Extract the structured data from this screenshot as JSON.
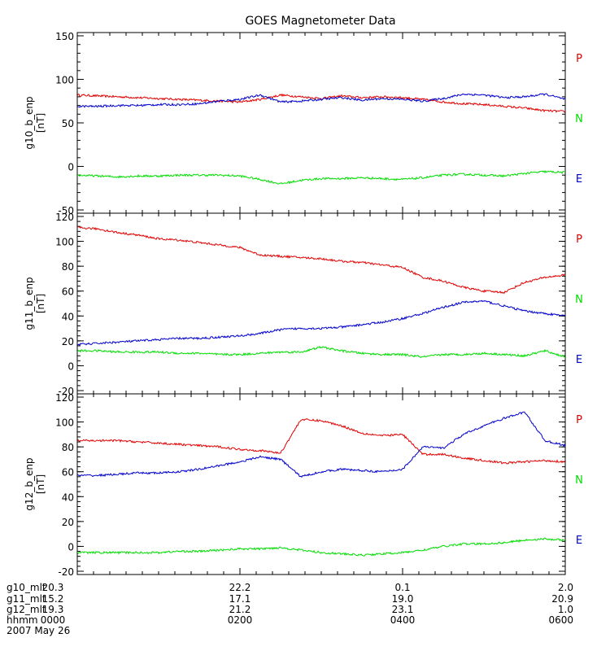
{
  "chart_data": {
    "type": "line",
    "title": "GOES Magnetometer Data",
    "colors": {
      "P": "#e00000",
      "N": "#00dd00",
      "E": "#0000cc"
    },
    "x": [
      0,
      15,
      30,
      45,
      60,
      75,
      90,
      105,
      120,
      135,
      150,
      165,
      180,
      195,
      210,
      225,
      240,
      255,
      270,
      285,
      300,
      315,
      330,
      345,
      360
    ],
    "xlim": [
      0,
      360
    ],
    "panels": [
      {
        "ylabel": "g10_b_enp",
        "units": "[nT]",
        "ylim": [
          -50,
          150
        ],
        "yticks": [
          -50,
          0,
          50,
          100,
          150
        ],
        "legend": [
          "P",
          "N",
          "E"
        ],
        "series": [
          {
            "name": "P",
            "color": "#e00000",
            "values": [
              82,
              81,
              80,
              79,
              78,
              77,
              76,
              75,
              74,
              77,
              82,
              80,
              78,
              81,
              79,
              80,
              79,
              77,
              74,
              72,
              71,
              69,
              67,
              64,
              63
            ]
          },
          {
            "name": "N",
            "color": "#00dd00",
            "values": [
              -10,
              -11,
              -12,
              -11,
              -11,
              -10,
              -10,
              -10,
              -11,
              -15,
              -20,
              -16,
              -14,
              -14,
              -13,
              -14,
              -15,
              -13,
              -10,
              -9,
              -10,
              -11,
              -8,
              -6,
              -7
            ]
          },
          {
            "name": "E",
            "color": "#0000cc",
            "values": [
              69,
              69,
              70,
              70,
              71,
              71,
              72,
              75,
              77,
              82,
              74,
              75,
              77,
              79,
              76,
              78,
              77,
              75,
              78,
              83,
              82,
              79,
              80,
              83,
              77
            ]
          }
        ]
      },
      {
        "ylabel": "g11_b_enp",
        "units": "[nT]",
        "ylim": [
          -20,
          120
        ],
        "yticks": [
          -20,
          0,
          20,
          40,
          60,
          80,
          100,
          120
        ],
        "legend": [
          "P",
          "N",
          "E"
        ],
        "series": [
          {
            "name": "P",
            "color": "#e00000",
            "values": [
              111,
              110,
              107,
              105,
              102,
              101,
              99,
              97,
              95,
              89,
              88,
              87,
              86,
              84,
              83,
              81,
              79,
              71,
              68,
              63,
              60,
              59,
              67,
              71,
              73
            ]
          },
          {
            "name": "N",
            "color": "#00dd00",
            "values": [
              12,
              12,
              11,
              11,
              11,
              10,
              10,
              9,
              9,
              10,
              11,
              11,
              15,
              12,
              10,
              9,
              9,
              7,
              9,
              9,
              10,
              9,
              8,
              12,
              7
            ]
          },
          {
            "name": "E",
            "color": "#0000cc",
            "values": [
              17,
              18,
              19,
              20,
              21,
              22,
              22,
              23,
              24,
              26,
              29,
              30,
              30,
              31,
              33,
              35,
              38,
              42,
              47,
              51,
              52,
              48,
              44,
              42,
              40
            ]
          }
        ]
      },
      {
        "ylabel": "g12_b_enp",
        "units": "[nT]",
        "ylim": [
          -20,
          120
        ],
        "yticks": [
          -20,
          0,
          20,
          40,
          60,
          80,
          100,
          120
        ],
        "legend": [
          "P",
          "N",
          "E"
        ],
        "series": [
          {
            "name": "P",
            "color": "#e00000",
            "values": [
              85,
              85,
              85,
              84,
              83,
              82,
              81,
              80,
              78,
              77,
              75,
              102,
              101,
              97,
              91,
              89,
              90,
              74,
              74,
              71,
              69,
              67,
              68,
              69,
              68
            ]
          },
          {
            "name": "N",
            "color": "#00dd00",
            "values": [
              -5,
              -5,
              -5,
              -5,
              -5,
              -4,
              -4,
              -3,
              -2,
              -2,
              -1,
              -3,
              -5,
              -6,
              -7,
              -6,
              -5,
              -3,
              0,
              2,
              2,
              3,
              5,
              6,
              5
            ]
          },
          {
            "name": "E",
            "color": "#0000cc",
            "values": [
              57,
              57,
              58,
              59,
              59,
              60,
              62,
              65,
              68,
              72,
              70,
              56,
              60,
              62,
              61,
              60,
              62,
              80,
              79,
              90,
              97,
              103,
              108,
              85,
              81
            ]
          }
        ]
      }
    ],
    "xaxis_table": {
      "row_labels": [
        "g10_mlt",
        "g11_mlt",
        "g12_mlt",
        "hhmm"
      ],
      "columns": [
        [
          "20.3",
          "15.2",
          "19.3",
          "0000"
        ],
        [
          "22.2",
          "17.1",
          "21.2",
          "0200"
        ],
        [
          "0.1",
          "19.0",
          "23.1",
          "0400"
        ],
        [
          "2.0",
          "20.9",
          "1.0",
          "0600"
        ]
      ],
      "date": "2007 May 26"
    }
  }
}
